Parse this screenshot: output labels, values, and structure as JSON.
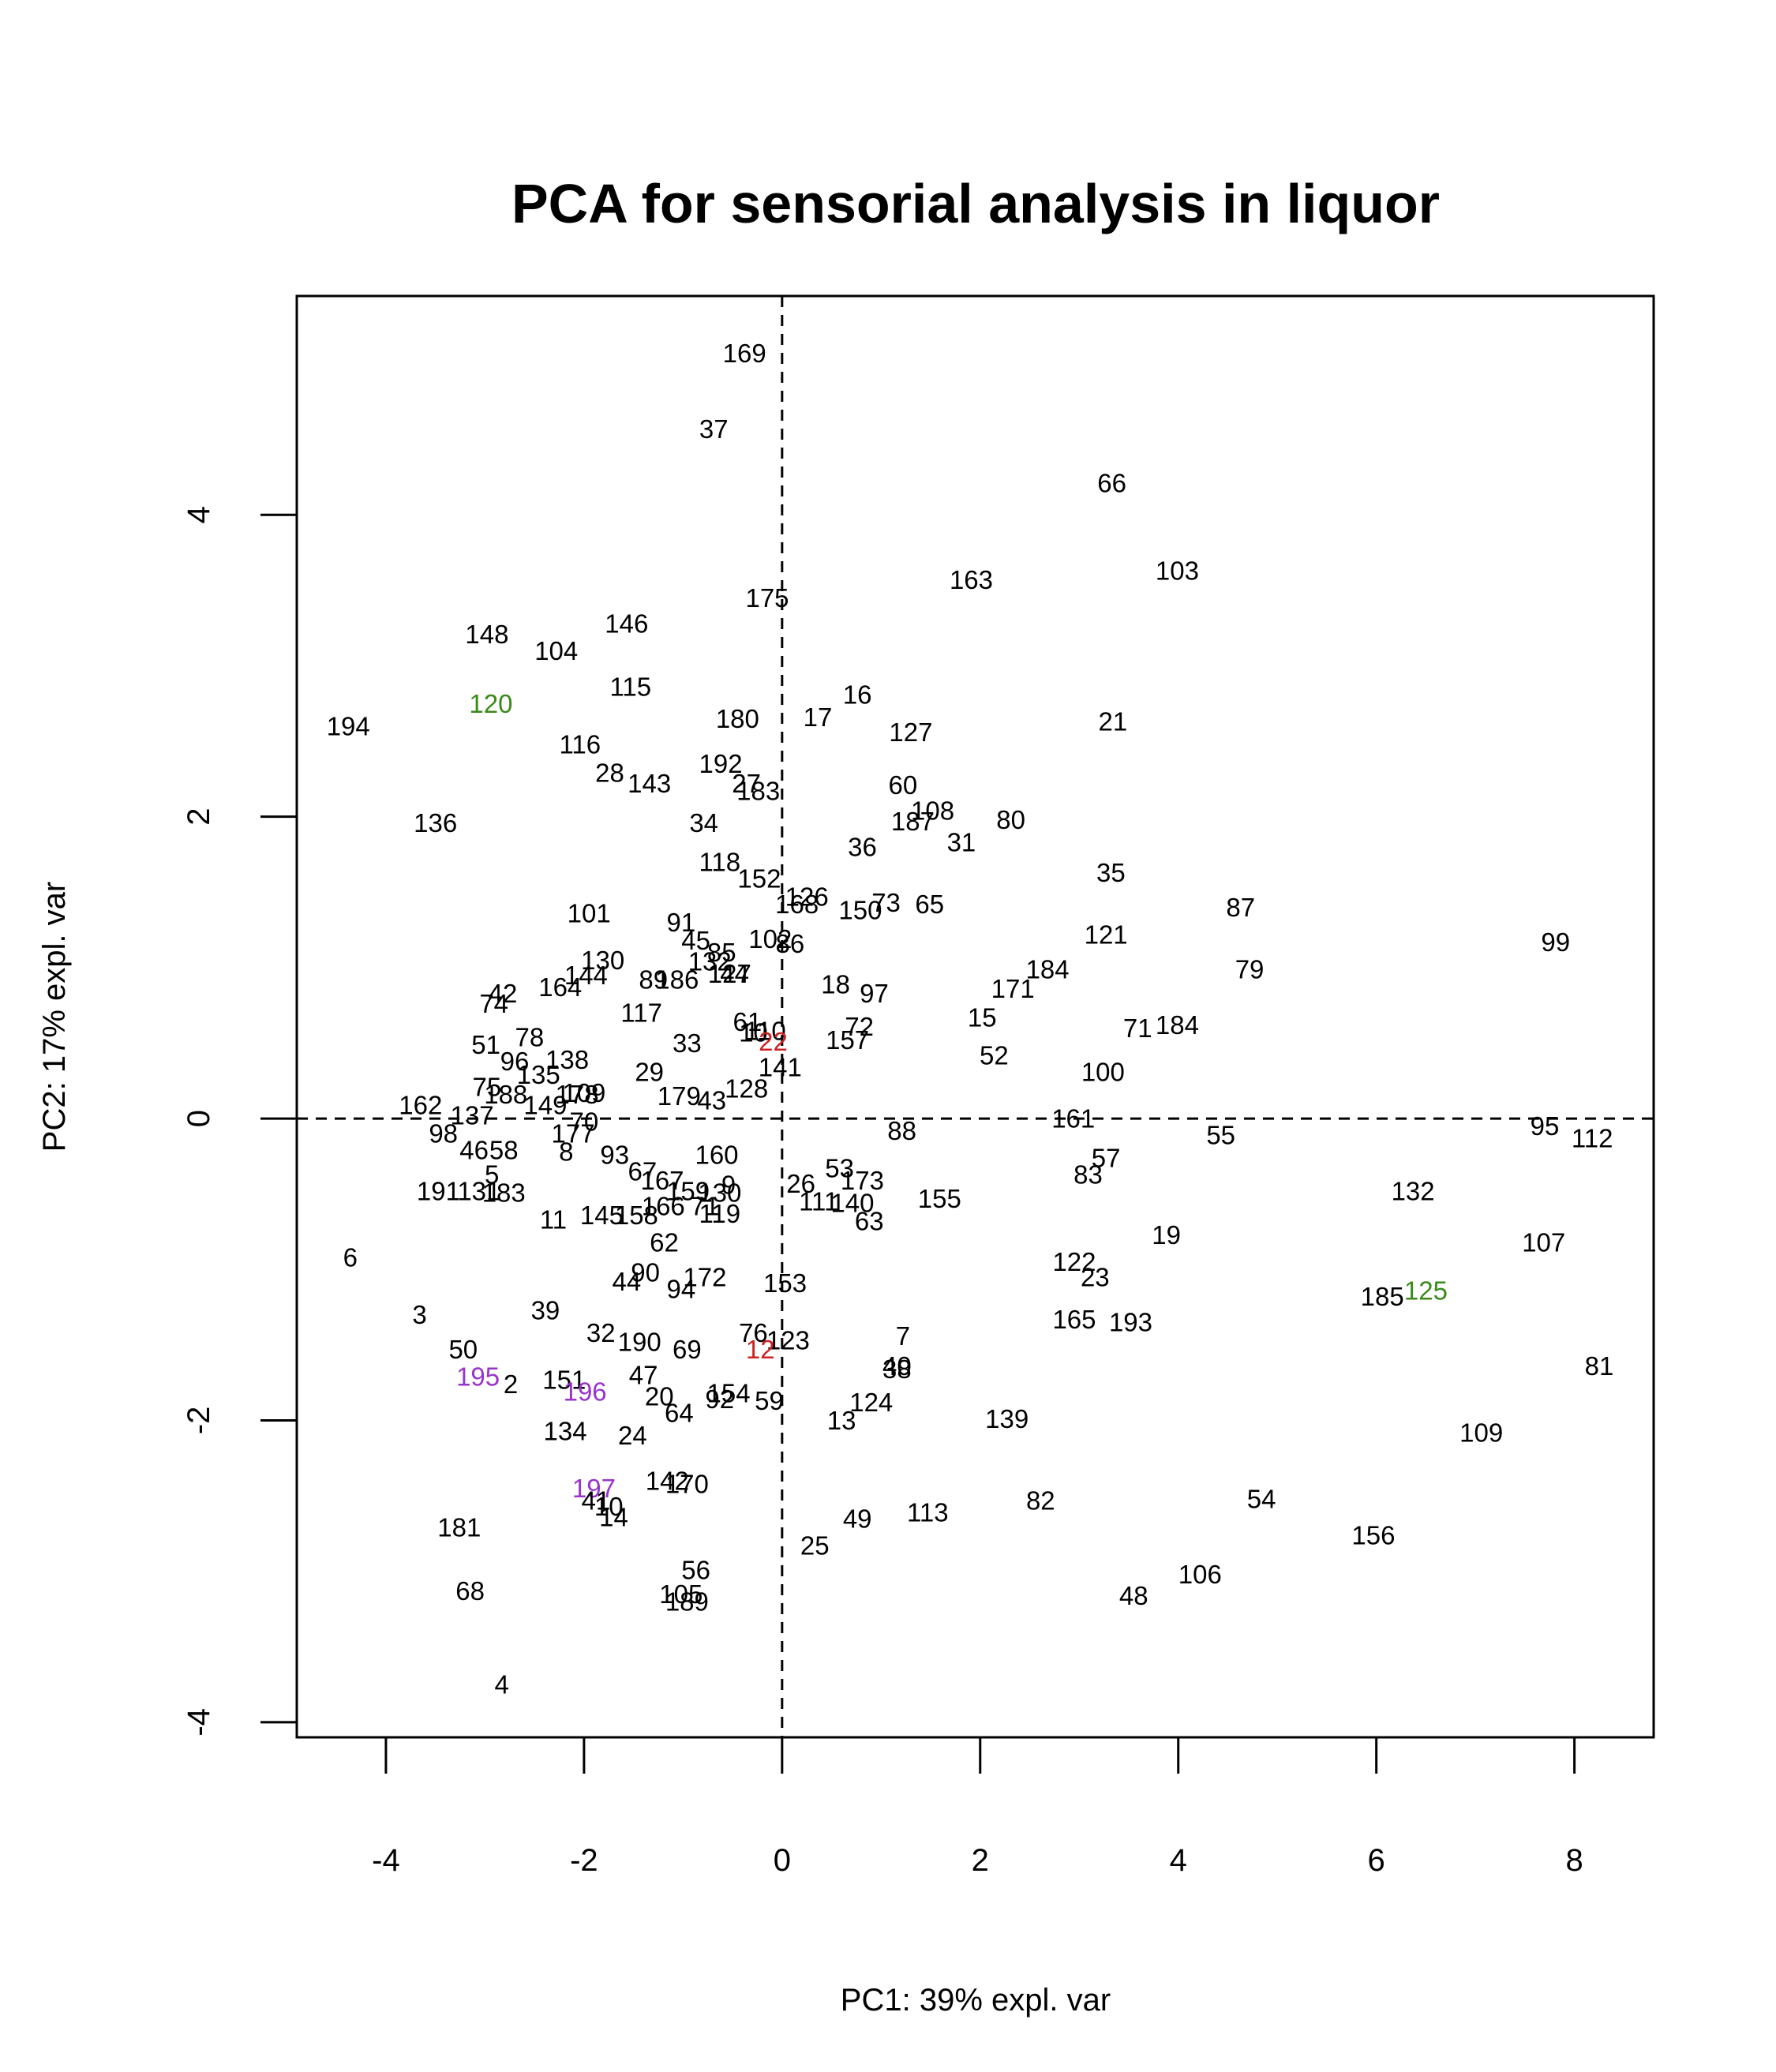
{
  "chart_data": {
    "type": "scatter",
    "title": "PCA for sensorial analysis in liquor",
    "xlabel": "PC1: 39% expl. var",
    "ylabel": "PC2: 17% expl. var",
    "xlim": [
      -4.9,
      8.8
    ],
    "ylim": [
      -4.1,
      5.45
    ],
    "xticks": [
      -4,
      -2,
      0,
      2,
      4,
      6,
      8
    ],
    "yticks": [
      -4,
      -2,
      0,
      2,
      4
    ],
    "grid": false,
    "reference_lines": [
      {
        "axis": "x",
        "value": 0,
        "style": "dashed"
      },
      {
        "axis": "y",
        "value": 0,
        "style": "dashed"
      }
    ],
    "point_style": "text-labels",
    "colors": {
      "default": "#000000",
      "red": "#cc2222",
      "green": "#3a8a1a",
      "purple": "#9933cc"
    },
    "points": [
      {
        "label": "169",
        "x": -0.38,
        "y": 5.07
      },
      {
        "label": "37",
        "x": -0.69,
        "y": 4.57
      },
      {
        "label": "66",
        "x": 3.33,
        "y": 4.21
      },
      {
        "label": "103",
        "x": 3.99,
        "y": 3.63
      },
      {
        "label": "163",
        "x": 1.91,
        "y": 3.57
      },
      {
        "label": "175",
        "x": -0.15,
        "y": 3.45
      },
      {
        "label": "148",
        "x": -2.98,
        "y": 3.21
      },
      {
        "label": "146",
        "x": -1.57,
        "y": 3.28
      },
      {
        "label": "104",
        "x": -2.28,
        "y": 3.1
      },
      {
        "label": "115",
        "x": -1.53,
        "y": 2.86
      },
      {
        "label": "120",
        "x": -2.94,
        "y": 2.75,
        "color": "green"
      },
      {
        "label": "194",
        "x": -4.38,
        "y": 2.6
      },
      {
        "label": "180",
        "x": -0.45,
        "y": 2.65
      },
      {
        "label": "17",
        "x": 0.36,
        "y": 2.66
      },
      {
        "label": "16",
        "x": 0.76,
        "y": 2.81
      },
      {
        "label": "127",
        "x": 1.3,
        "y": 2.56
      },
      {
        "label": "21",
        "x": 3.34,
        "y": 2.63
      },
      {
        "label": "116",
        "x": -2.04,
        "y": 2.48
      },
      {
        "label": "192",
        "x": -0.62,
        "y": 2.35
      },
      {
        "label": "28",
        "x": -1.74,
        "y": 2.29
      },
      {
        "label": "143",
        "x": -1.34,
        "y": 2.22
      },
      {
        "label": "27",
        "x": -0.36,
        "y": 2.22
      },
      {
        "label": "183",
        "x": -0.24,
        "y": 2.17
      },
      {
        "label": "60",
        "x": 1.22,
        "y": 2.21
      },
      {
        "label": "108",
        "x": 1.52,
        "y": 2.04
      },
      {
        "label": "187",
        "x": 1.32,
        "y": 1.97
      },
      {
        "label": "80",
        "x": 2.31,
        "y": 1.98
      },
      {
        "label": "136",
        "x": -3.5,
        "y": 1.96
      },
      {
        "label": "34",
        "x": -0.79,
        "y": 1.96
      },
      {
        "label": "31",
        "x": 1.81,
        "y": 1.83
      },
      {
        "label": "36",
        "x": 0.81,
        "y": 1.8
      },
      {
        "label": "118",
        "x": -0.63,
        "y": 1.7
      },
      {
        "label": "152",
        "x": -0.23,
        "y": 1.59
      },
      {
        "label": "35",
        "x": 3.32,
        "y": 1.63
      },
      {
        "label": "126",
        "x": 0.25,
        "y": 1.47
      },
      {
        "label": "168",
        "x": 0.15,
        "y": 1.42
      },
      {
        "label": "73",
        "x": 1.05,
        "y": 1.43
      },
      {
        "label": "150",
        "x": 0.79,
        "y": 1.38
      },
      {
        "label": "65",
        "x": 1.49,
        "y": 1.42
      },
      {
        "label": "87",
        "x": 4.63,
        "y": 1.4
      },
      {
        "label": "101",
        "x": -1.95,
        "y": 1.36
      },
      {
        "label": "91",
        "x": -1.02,
        "y": 1.3
      },
      {
        "label": "121",
        "x": 3.27,
        "y": 1.22
      },
      {
        "label": "99",
        "x": 7.81,
        "y": 1.17
      },
      {
        "label": "45",
        "x": -0.87,
        "y": 1.18
      },
      {
        "label": "102",
        "x": -0.12,
        "y": 1.19
      },
      {
        "label": "86",
        "x": 0.08,
        "y": 1.16
      },
      {
        "label": "85",
        "x": -0.61,
        "y": 1.1
      },
      {
        "label": "132",
        "x": -0.73,
        "y": 1.04
      },
      {
        "label": "130",
        "x": -1.81,
        "y": 1.05
      },
      {
        "label": "79",
        "x": 4.72,
        "y": 0.99
      },
      {
        "label": "184",
        "x": 2.68,
        "y": 0.99
      },
      {
        "label": "144",
        "x": -1.98,
        "y": 0.95
      },
      {
        "label": "127",
        "x": -0.53,
        "y": 0.96
      },
      {
        "label": "44",
        "x": -0.48,
        "y": 0.96
      },
      {
        "label": "89",
        "x": -1.3,
        "y": 0.92
      },
      {
        "label": "186",
        "x": -1.06,
        "y": 0.92
      },
      {
        "label": "18",
        "x": 0.54,
        "y": 0.89
      },
      {
        "label": "171",
        "x": 2.33,
        "y": 0.86
      },
      {
        "label": "164",
        "x": -2.24,
        "y": 0.87
      },
      {
        "label": "97",
        "x": 0.93,
        "y": 0.83
      },
      {
        "label": "42",
        "x": -2.82,
        "y": 0.83
      },
      {
        "label": "74",
        "x": -2.91,
        "y": 0.76
      },
      {
        "label": "117",
        "x": -1.42,
        "y": 0.7
      },
      {
        "label": "15",
        "x": 2.02,
        "y": 0.67
      },
      {
        "label": "61",
        "x": -0.35,
        "y": 0.64
      },
      {
        "label": "184",
        "x": 3.99,
        "y": 0.62
      },
      {
        "label": "71",
        "x": 3.59,
        "y": 0.6
      },
      {
        "label": "72",
        "x": 0.78,
        "y": 0.61
      },
      {
        "label": "110",
        "x": -0.17,
        "y": 0.58
      },
      {
        "label": "10",
        "x": -0.29,
        "y": 0.57
      },
      {
        "label": "22",
        "x": -0.09,
        "y": 0.51,
        "color": "red"
      },
      {
        "label": "157",
        "x": 0.66,
        "y": 0.52
      },
      {
        "label": "78",
        "x": -2.55,
        "y": 0.54
      },
      {
        "label": "51",
        "x": -2.99,
        "y": 0.49
      },
      {
        "label": "33",
        "x": -0.96,
        "y": 0.5
      },
      {
        "label": "52",
        "x": 2.14,
        "y": 0.42
      },
      {
        "label": "138",
        "x": -2.17,
        "y": 0.39
      },
      {
        "label": "96",
        "x": -2.7,
        "y": 0.38
      },
      {
        "label": "141",
        "x": -0.02,
        "y": 0.34
      },
      {
        "label": "100",
        "x": 3.24,
        "y": 0.31
      },
      {
        "label": "135",
        "x": -2.46,
        "y": 0.29
      },
      {
        "label": "29",
        "x": -1.34,
        "y": 0.31
      },
      {
        "label": "75",
        "x": -2.98,
        "y": 0.21
      },
      {
        "label": "128",
        "x": -0.36,
        "y": 0.2
      },
      {
        "label": "109",
        "x": -2.0,
        "y": 0.17
      },
      {
        "label": "179",
        "x": -1.04,
        "y": 0.15
      },
      {
        "label": "188",
        "x": -2.79,
        "y": 0.16
      },
      {
        "label": "178",
        "x": -2.07,
        "y": 0.16
      },
      {
        "label": "43",
        "x": -0.71,
        "y": 0.12
      },
      {
        "label": "149",
        "x": -2.39,
        "y": 0.09
      },
      {
        "label": "162",
        "x": -3.65,
        "y": 0.09
      },
      {
        "label": "137",
        "x": -3.13,
        "y": 0.02
      },
      {
        "label": "161",
        "x": 2.94,
        "y": 0.0
      },
      {
        "label": "70",
        "x": -2.0,
        "y": -0.02
      },
      {
        "label": "95",
        "x": 7.7,
        "y": -0.05
      },
      {
        "label": "88",
        "x": 1.21,
        "y": -0.08
      },
      {
        "label": "55",
        "x": 4.43,
        "y": -0.11
      },
      {
        "label": "98",
        "x": -3.42,
        "y": -0.1
      },
      {
        "label": "112",
        "x": 8.18,
        "y": -0.13
      },
      {
        "label": "177",
        "x": -2.11,
        "y": -0.1
      },
      {
        "label": "46",
        "x": -3.11,
        "y": -0.21
      },
      {
        "label": "58",
        "x": -2.81,
        "y": -0.21
      },
      {
        "label": "8",
        "x": -2.18,
        "y": -0.22
      },
      {
        "label": "93",
        "x": -1.69,
        "y": -0.24
      },
      {
        "label": "160",
        "x": -0.66,
        "y": -0.24
      },
      {
        "label": "57",
        "x": 3.27,
        "y": -0.26
      },
      {
        "label": "53",
        "x": 0.58,
        "y": -0.33
      },
      {
        "label": "83",
        "x": 3.09,
        "y": -0.37
      },
      {
        "label": "67",
        "x": -1.41,
        "y": -0.35
      },
      {
        "label": "173",
        "x": 0.81,
        "y": -0.41
      },
      {
        "label": "5",
        "x": -2.93,
        "y": -0.37
      },
      {
        "label": "167",
        "x": -1.21,
        "y": -0.41
      },
      {
        "label": "9",
        "x": -0.54,
        "y": -0.44
      },
      {
        "label": "26",
        "x": 0.19,
        "y": -0.43
      },
      {
        "label": "191",
        "x": -3.47,
        "y": -0.48
      },
      {
        "label": "131",
        "x": -3.06,
        "y": -0.48
      },
      {
        "label": "183",
        "x": -2.81,
        "y": -0.49
      },
      {
        "label": "159",
        "x": -0.95,
        "y": -0.48
      },
      {
        "label": "130",
        "x": -0.63,
        "y": -0.49
      },
      {
        "label": "132",
        "x": 6.37,
        "y": -0.48
      },
      {
        "label": "111",
        "x": 0.37,
        "y": -0.55
      },
      {
        "label": "155",
        "x": 1.59,
        "y": -0.53
      },
      {
        "label": "140",
        "x": 0.71,
        "y": -0.56
      },
      {
        "label": "166",
        "x": -1.2,
        "y": -0.58
      },
      {
        "label": "71",
        "x": -0.78,
        "y": -0.58
      },
      {
        "label": "63",
        "x": 0.88,
        "y": -0.68
      },
      {
        "label": "119",
        "x": -0.63,
        "y": -0.63
      },
      {
        "label": "11",
        "x": -2.31,
        "y": -0.67
      },
      {
        "label": "145",
        "x": -1.82,
        "y": -0.64
      },
      {
        "label": "158",
        "x": -1.47,
        "y": -0.64
      },
      {
        "label": "19",
        "x": 3.88,
        "y": -0.77
      },
      {
        "label": "62",
        "x": -1.19,
        "y": -0.82
      },
      {
        "label": "107",
        "x": 7.69,
        "y": -0.82
      },
      {
        "label": "6",
        "x": -4.36,
        "y": -0.92
      },
      {
        "label": "122",
        "x": 2.95,
        "y": -0.95
      },
      {
        "label": "90",
        "x": -1.38,
        "y": -1.02
      },
      {
        "label": "172",
        "x": -0.78,
        "y": -1.05
      },
      {
        "label": "23",
        "x": 3.16,
        "y": -1.05
      },
      {
        "label": "44",
        "x": -1.57,
        "y": -1.08
      },
      {
        "label": "153",
        "x": 0.03,
        "y": -1.09
      },
      {
        "label": "94",
        "x": -1.02,
        "y": -1.13
      },
      {
        "label": "125",
        "x": 6.5,
        "y": -1.14,
        "color": "green"
      },
      {
        "label": "185",
        "x": 6.06,
        "y": -1.18
      },
      {
        "label": "39",
        "x": -2.39,
        "y": -1.27
      },
      {
        "label": "3",
        "x": -3.66,
        "y": -1.3
      },
      {
        "label": "165",
        "x": 2.95,
        "y": -1.33
      },
      {
        "label": "193",
        "x": 3.52,
        "y": -1.35
      },
      {
        "label": "76",
        "x": -0.29,
        "y": -1.42
      },
      {
        "label": "7",
        "x": 1.22,
        "y": -1.44
      },
      {
        "label": "32",
        "x": -1.83,
        "y": -1.42
      },
      {
        "label": "123",
        "x": 0.06,
        "y": -1.47
      },
      {
        "label": "190",
        "x": -1.44,
        "y": -1.48
      },
      {
        "label": "69",
        "x": -0.96,
        "y": -1.53
      },
      {
        "label": "12",
        "x": -0.22,
        "y": -1.53,
        "color": "red"
      },
      {
        "label": "50",
        "x": -3.22,
        "y": -1.53
      },
      {
        "label": "81",
        "x": 8.25,
        "y": -1.64
      },
      {
        "label": "40",
        "x": 1.16,
        "y": -1.64
      },
      {
        "label": "38",
        "x": 1.16,
        "y": -1.66
      },
      {
        "label": "195",
        "x": -3.07,
        "y": -1.71,
        "color": "purple"
      },
      {
        "label": "151",
        "x": -2.2,
        "y": -1.73
      },
      {
        "label": "47",
        "x": -1.4,
        "y": -1.7
      },
      {
        "label": "2",
        "x": -2.74,
        "y": -1.76
      },
      {
        "label": "196",
        "x": -1.99,
        "y": -1.81,
        "color": "purple"
      },
      {
        "label": "20",
        "x": -1.24,
        "y": -1.84
      },
      {
        "label": "154",
        "x": -0.54,
        "y": -1.82
      },
      {
        "label": "92",
        "x": -0.63,
        "y": -1.86
      },
      {
        "label": "59",
        "x": -0.13,
        "y": -1.87
      },
      {
        "label": "124",
        "x": 0.9,
        "y": -1.88
      },
      {
        "label": "64",
        "x": -1.04,
        "y": -1.95
      },
      {
        "label": "13",
        "x": 0.6,
        "y": -2.0
      },
      {
        "label": "139",
        "x": 2.27,
        "y": -1.99
      },
      {
        "label": "134",
        "x": -2.19,
        "y": -2.07
      },
      {
        "label": "24",
        "x": -1.51,
        "y": -2.1
      },
      {
        "label": "109",
        "x": 7.06,
        "y": -2.08
      },
      {
        "label": "142",
        "x": -1.16,
        "y": -2.4
      },
      {
        "label": "170",
        "x": -0.96,
        "y": -2.42
      },
      {
        "label": "197",
        "x": -1.9,
        "y": -2.45,
        "color": "purple"
      },
      {
        "label": "41",
        "x": -1.88,
        "y": -2.53
      },
      {
        "label": "10",
        "x": -1.75,
        "y": -2.57
      },
      {
        "label": "14",
        "x": -1.7,
        "y": -2.64
      },
      {
        "label": "82",
        "x": 2.61,
        "y": -2.53
      },
      {
        "label": "54",
        "x": 4.84,
        "y": -2.52
      },
      {
        "label": "113",
        "x": 1.47,
        "y": -2.61
      },
      {
        "label": "49",
        "x": 0.76,
        "y": -2.65
      },
      {
        "label": "181",
        "x": -3.26,
        "y": -2.71
      },
      {
        "label": "156",
        "x": 5.97,
        "y": -2.76
      },
      {
        "label": "25",
        "x": 0.33,
        "y": -2.83
      },
      {
        "label": "106",
        "x": 4.22,
        "y": -3.02
      },
      {
        "label": "56",
        "x": -0.87,
        "y": -2.99
      },
      {
        "label": "68",
        "x": -3.15,
        "y": -3.13
      },
      {
        "label": "48",
        "x": 3.55,
        "y": -3.16
      },
      {
        "label": "105",
        "x": -1.02,
        "y": -3.15
      },
      {
        "label": "189",
        "x": -0.96,
        "y": -3.2
      },
      {
        "label": "4",
        "x": -2.83,
        "y": -3.75
      }
    ]
  }
}
